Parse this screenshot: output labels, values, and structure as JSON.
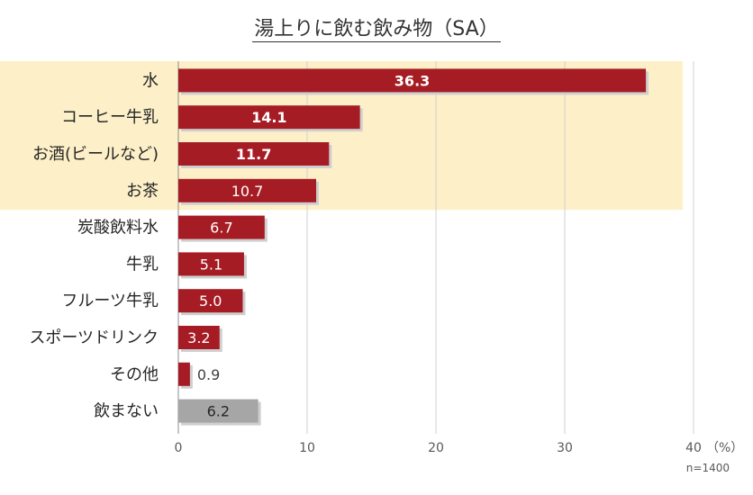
{
  "chart_data": {
    "type": "bar",
    "orientation": "horizontal",
    "title": "湯上りに飲む飲み物（SA）",
    "categories": [
      "水",
      "コーヒー牛乳",
      "お酒(ビールなど)",
      "お茶",
      "炭酸飲料水",
      "牛乳",
      "フルーツ牛乳",
      "スポーツドリンク",
      "その他",
      "飲まない"
    ],
    "values": [
      36.3,
      14.1,
      11.7,
      10.7,
      6.7,
      5.1,
      5.0,
      3.2,
      0.9,
      6.2
    ],
    "value_labels": [
      "36.3",
      "14.1",
      "11.7",
      "10.7",
      "6.7",
      "5.1",
      "5.0",
      "3.2",
      "0.9",
      "6.2"
    ],
    "bold_labels": [
      true,
      true,
      true,
      false,
      false,
      false,
      false,
      false,
      false,
      false
    ],
    "label_inside": [
      true,
      true,
      true,
      true,
      true,
      true,
      true,
      true,
      false,
      true
    ],
    "bar_colors": [
      "#a61c24",
      "#a61c24",
      "#a61c24",
      "#a61c24",
      "#a61c24",
      "#a61c24",
      "#a61c24",
      "#a61c24",
      "#a61c24",
      "#a6a6a6"
    ],
    "highlight_rows": 4,
    "highlight_color": "#fdf0c8",
    "xlim": [
      0,
      40
    ],
    "xticks": [
      "0",
      "10",
      "20",
      "30",
      "40"
    ],
    "x_unit": "（%）",
    "note": "n=1400",
    "grid": true
  }
}
